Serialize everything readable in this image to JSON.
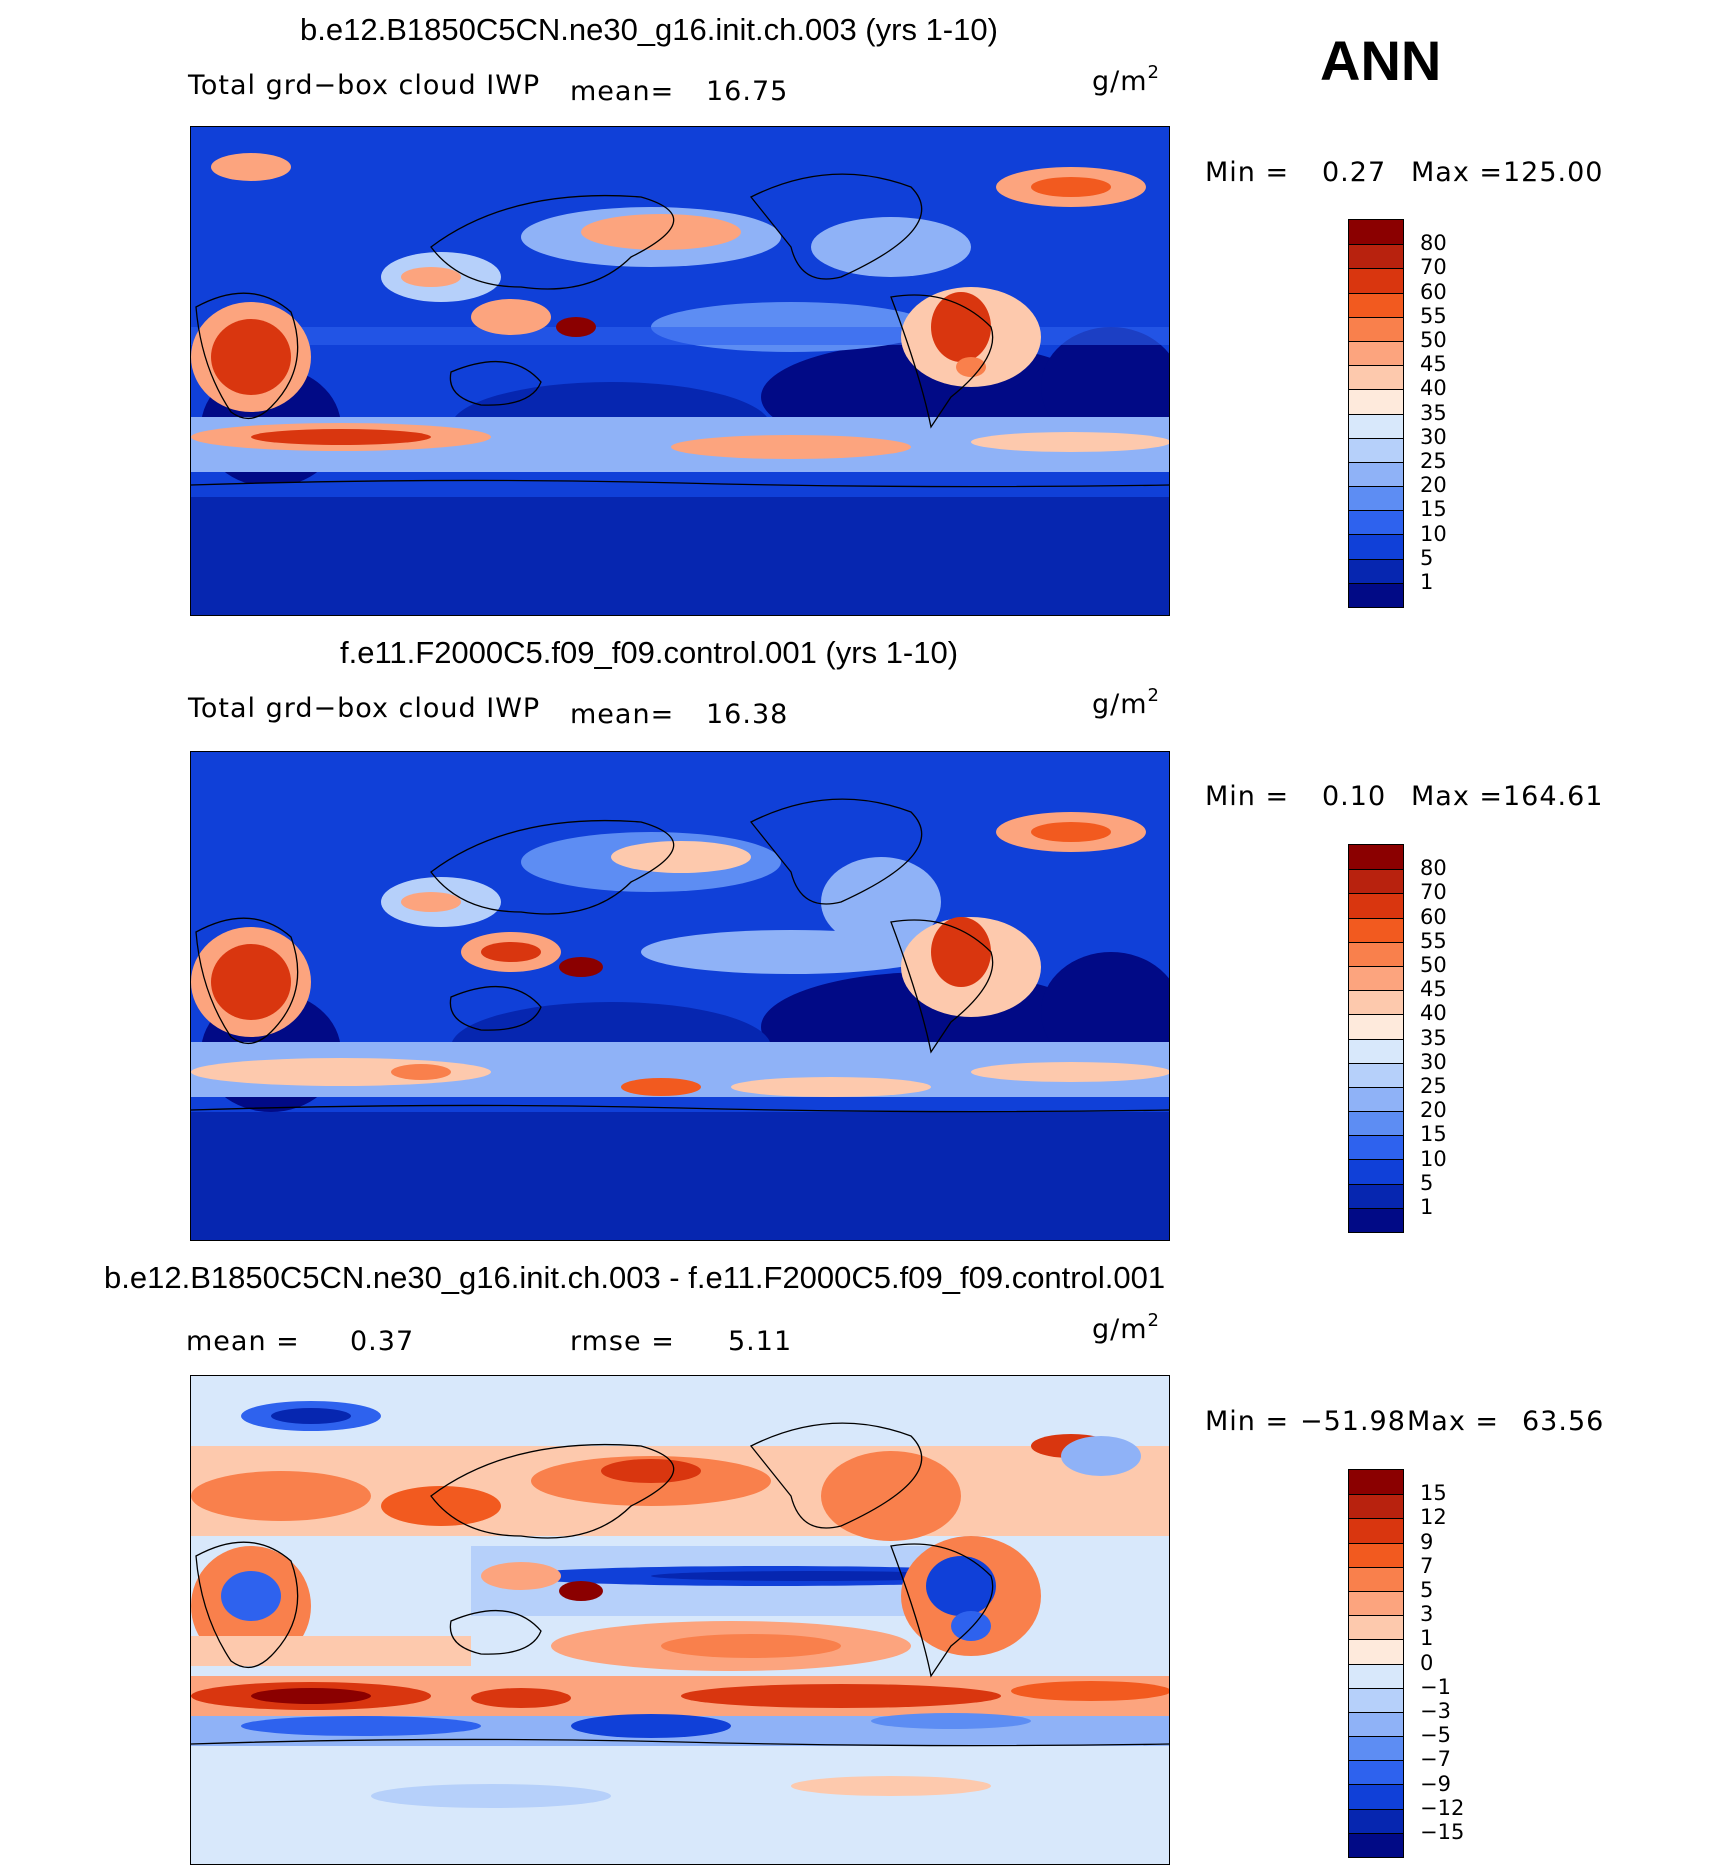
{
  "season": "ANN",
  "units_text": "g/m",
  "units_exp": "2",
  "panel1": {
    "title": "b.e12.B1850C5CN.ne30_g16.init.ch.003 (yrs 1-10)",
    "variable": "Total grd−box cloud IWP",
    "mean_label": "mean=",
    "mean_value": "16.75",
    "min_label": "Min =",
    "min_value": "0.27",
    "max_label": "Max =",
    "max_value": "125.00"
  },
  "panel2": {
    "title": "f.e11.F2000C5.f09_f09.control.001 (yrs 1-10)",
    "variable": "Total grd−box cloud IWP",
    "mean_label": "mean=",
    "mean_value": "16.38",
    "min_label": "Min =",
    "min_value": "0.10",
    "max_label": "Max =",
    "max_value": "164.61"
  },
  "panel3": {
    "title": "b.e12.B1850C5CN.ne30_g16.init.ch.003 - f.e11.F2000C5.f09_f09.control.001",
    "mean_label": "mean =",
    "mean_value": "0.37",
    "rmse_label": "rmse =",
    "rmse_value": "5.11",
    "min_label": "Min =",
    "min_value": "−51.98",
    "max_label": "Max =",
    "max_value": "63.56"
  },
  "legend_abs": {
    "labels": [
      "80",
      "70",
      "60",
      "55",
      "50",
      "45",
      "40",
      "35",
      "30",
      "25",
      "20",
      "15",
      "10",
      "5",
      "1"
    ],
    "colors": [
      "#8b0000",
      "#b8220e",
      "#d9360f",
      "#f25a1f",
      "#f9804c",
      "#fca47e",
      "#fdc9ad",
      "#feeadc",
      "#d8e8fb",
      "#b6d0fa",
      "#8fb2f7",
      "#5d8df3",
      "#2e62ee",
      "#1040d8",
      "#0626b0",
      "#010a86"
    ]
  },
  "legend_diff": {
    "labels": [
      "15",
      "12",
      "9",
      "7",
      "5",
      "3",
      "1",
      "0",
      "−1",
      "−3",
      "−5",
      "−7",
      "−9",
      "−12",
      "−15"
    ],
    "colors": [
      "#8b0000",
      "#b8220e",
      "#d9360f",
      "#f25a1f",
      "#f9804c",
      "#fca47e",
      "#fdc9ad",
      "#feeadc",
      "#d8e8fb",
      "#b6d0fa",
      "#8fb2f7",
      "#5d8df3",
      "#2e62ee",
      "#1040d8",
      "#0626b0",
      "#010a86"
    ]
  }
}
